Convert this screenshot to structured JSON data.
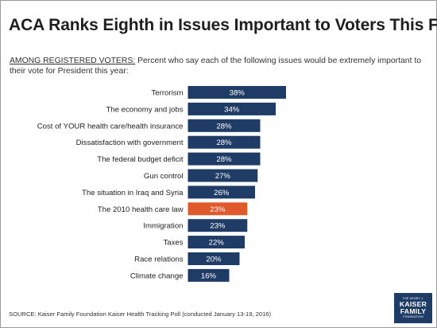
{
  "header": {
    "title": "ACA Ranks Eighth in Issues Important to Voters This Fall",
    "subtitle_lead": "AMONG REGISTERED VOTERS:",
    "subtitle_rest": " Percent who say each of the following issues would be extremely important to their vote for President this year:"
  },
  "footer": {
    "source": "SOURCE: Kaiser Family Foundation Kaiser Health Tracking Poll (conducted January 13-19, 2016)"
  },
  "logo": {
    "line1": "THE HENRY J.",
    "line2": "KAISER",
    "line3": "FAMILY",
    "line4": "FOUNDATION"
  },
  "colors": {
    "bar": "#1f3c66",
    "highlight": "#e0592a",
    "bar_text": "#ffffff",
    "label_text": "#222222"
  },
  "chart_data": {
    "type": "bar",
    "orientation": "horizontal",
    "title": "ACA Ranks Eighth in Issues Important to Voters This Fall",
    "xlabel": "",
    "ylabel": "",
    "xlim": [
      0,
      100
    ],
    "grid": false,
    "legend": "none",
    "value_suffix": "%",
    "highlight_category": "The 2010 health care law",
    "categories": [
      "Terrorism",
      "The economy and jobs",
      "Cost of YOUR health care/health insurance",
      "Dissatisfaction with government",
      "The federal budget deficit",
      "Gun control",
      "The situation in Iraq and Syria",
      "The 2010 health care law",
      "Immigration",
      "Taxes",
      "Race relations",
      "Climate change"
    ],
    "values": [
      38,
      34,
      28,
      28,
      28,
      27,
      26,
      23,
      23,
      22,
      20,
      16
    ],
    "value_labels": [
      "38%",
      "34%",
      "28%",
      "28%",
      "28%",
      "27%",
      "26%",
      "23%",
      "23%",
      "22%",
      "20%",
      "16%"
    ]
  }
}
